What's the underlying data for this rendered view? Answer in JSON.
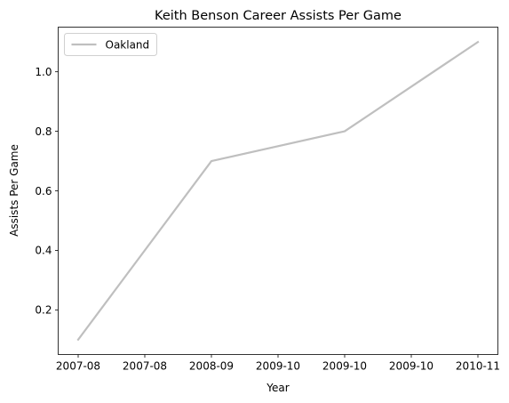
{
  "chart_data": {
    "type": "line",
    "title": "Keith Benson Career Assists Per Game",
    "xlabel": "Year",
    "ylabel": "Assists Per Game",
    "x_ticks": [
      "2007-08",
      "2007-08",
      "2008-09",
      "2009-10",
      "2009-10",
      "2009-10",
      "2010-11"
    ],
    "x_tick_positions": [
      0,
      0.5,
      1,
      1.5,
      2,
      2.5,
      3
    ],
    "xlim": [
      -0.15,
      3.15
    ],
    "y_ticks": [
      0.2,
      0.4,
      0.6,
      0.8,
      1.0
    ],
    "y_tick_labels": [
      "0.2",
      "0.4",
      "0.6",
      "0.8",
      "1.0"
    ],
    "ylim": [
      0.05,
      1.15
    ],
    "grid": false,
    "legend_position": "top-left",
    "series": [
      {
        "name": "Oakland",
        "color": "#bfbfbf",
        "x": [
          0,
          1,
          2,
          3
        ],
        "categories": [
          "2007-08",
          "2008-09",
          "2009-10",
          "2010-11"
        ],
        "values": [
          0.1,
          0.7,
          0.8,
          1.1
        ]
      }
    ]
  }
}
